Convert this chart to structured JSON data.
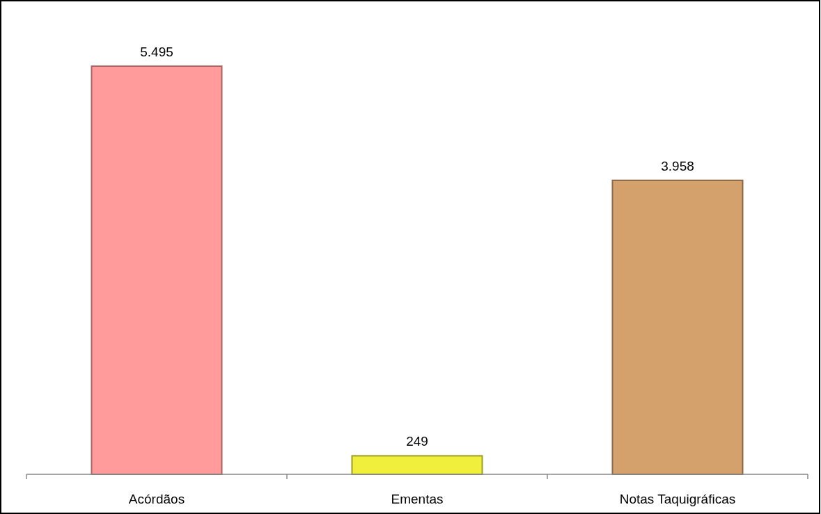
{
  "chart_data": {
    "type": "bar",
    "categories": [
      "Acórdãos",
      "Ementas",
      "Notas Taquigráficas"
    ],
    "values": [
      5495,
      249,
      3958
    ],
    "colors": [
      "#ff9b9b",
      "#f0f03c",
      "#d4a06c"
    ],
    "value_labels": [
      "5.495",
      "249",
      "3.958"
    ]
  }
}
